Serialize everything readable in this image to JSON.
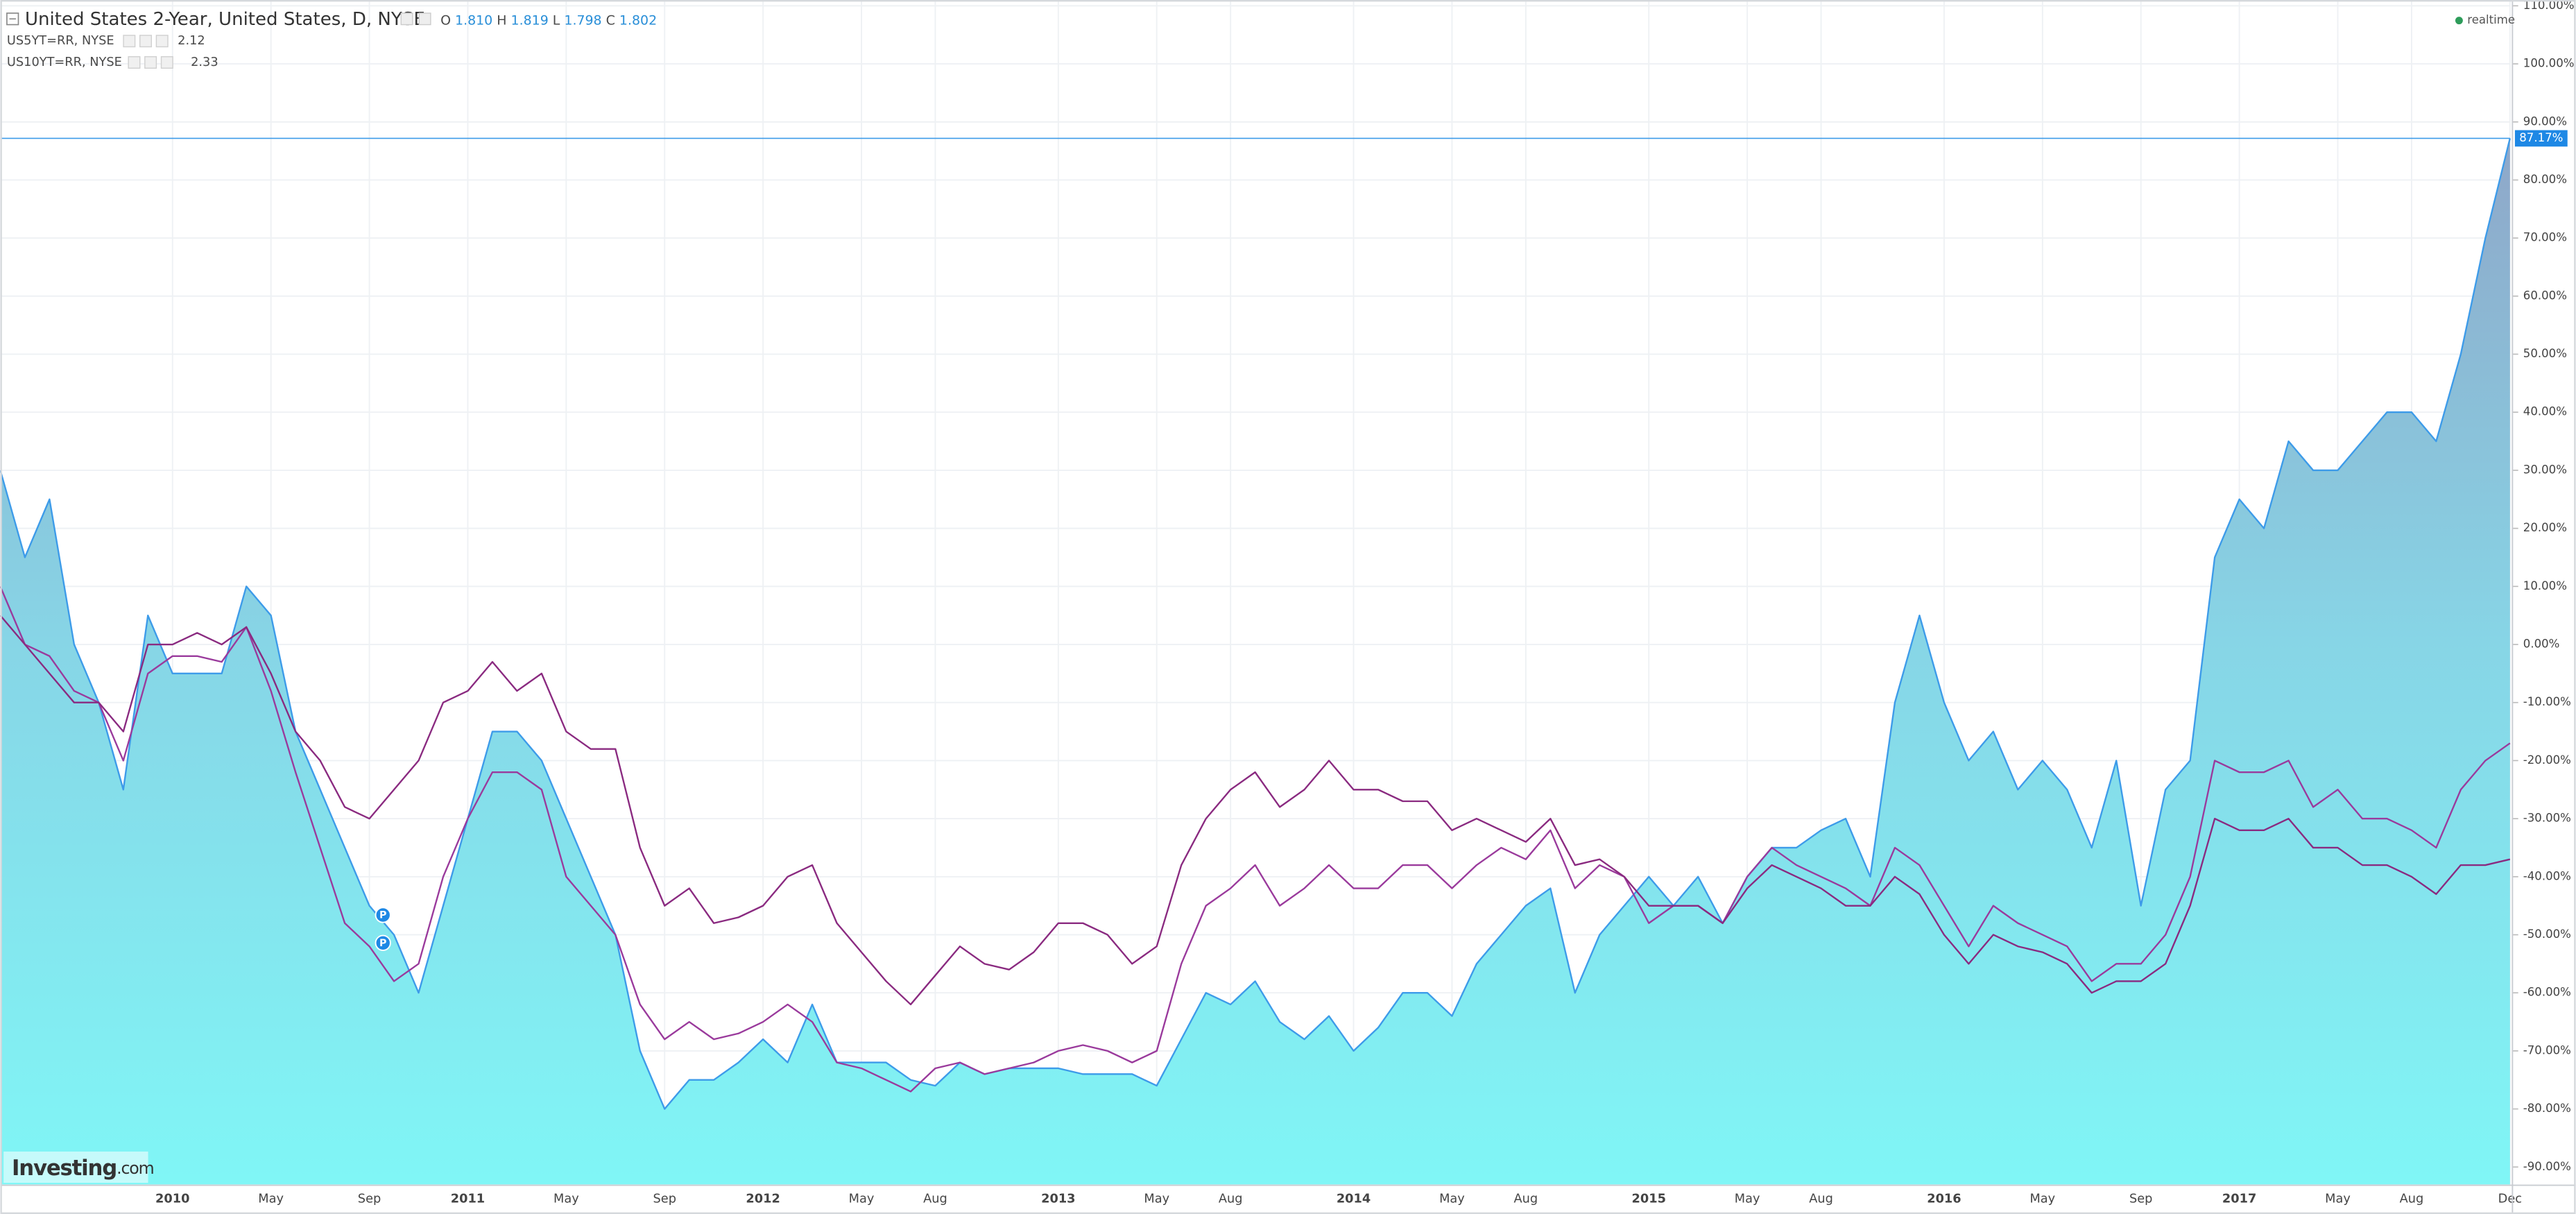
{
  "chart_data": {
    "type": "line",
    "title": "United States 2-Year, United States, D, NYSE",
    "ohlc": {
      "o_label": "O",
      "o": "1.810",
      "h_label": "H",
      "h": "1.819",
      "l_label": "L",
      "l": "1.798",
      "c_label": "C",
      "c": "1.802"
    },
    "status": "realtime",
    "watermark": {
      "brand": "Investing",
      "suffix": ".com"
    },
    "dividend_markers": [
      "P",
      "P"
    ],
    "x": [
      "2009-06",
      "2009-07",
      "2009-08",
      "2009-09",
      "2009-10",
      "2009-11",
      "2009-12",
      "2010-01",
      "2010-02",
      "2010-03",
      "2010-04",
      "2010-05",
      "2010-06",
      "2010-07",
      "2010-08",
      "2010-09",
      "2010-10",
      "2010-11",
      "2010-12",
      "2011-01",
      "2011-02",
      "2011-03",
      "2011-04",
      "2011-05",
      "2011-06",
      "2011-07",
      "2011-08",
      "2011-09",
      "2011-10",
      "2011-11",
      "2011-12",
      "2012-01",
      "2012-02",
      "2012-03",
      "2012-04",
      "2012-05",
      "2012-06",
      "2012-07",
      "2012-08",
      "2012-09",
      "2012-10",
      "2012-11",
      "2012-12",
      "2013-01",
      "2013-02",
      "2013-03",
      "2013-04",
      "2013-05",
      "2013-06",
      "2013-07",
      "2013-08",
      "2013-09",
      "2013-10",
      "2013-11",
      "2013-12",
      "2014-01",
      "2014-02",
      "2014-03",
      "2014-04",
      "2014-05",
      "2014-06",
      "2014-07",
      "2014-08",
      "2014-09",
      "2014-10",
      "2014-11",
      "2014-12",
      "2015-01",
      "2015-02",
      "2015-03",
      "2015-04",
      "2015-05",
      "2015-06",
      "2015-07",
      "2015-08",
      "2015-09",
      "2015-10",
      "2015-11",
      "2015-12",
      "2016-01",
      "2016-02",
      "2016-03",
      "2016-04",
      "2016-05",
      "2016-06",
      "2016-07",
      "2016-08",
      "2016-09",
      "2016-10",
      "2016-11",
      "2016-12",
      "2017-01",
      "2017-02",
      "2017-03",
      "2017-04",
      "2017-05",
      "2017-06",
      "2017-07",
      "2017-08",
      "2017-09",
      "2017-10",
      "2017-11",
      "2017-12"
    ],
    "series": [
      {
        "name": "United States 2-Year",
        "color": "#3d9be9",
        "area": true,
        "values": [
          30,
          15,
          25,
          0,
          -10,
          -25,
          5,
          -5,
          -5,
          -5,
          10,
          5,
          -15,
          -25,
          -35,
          -45,
          -50,
          -60,
          -45,
          -30,
          -15,
          -15,
          -20,
          -30,
          -40,
          -50,
          -70,
          -80,
          -75,
          -75,
          -72,
          -68,
          -72,
          -62,
          -72,
          -72,
          -72,
          -75,
          -76,
          -72,
          -74,
          -73,
          -73,
          -73,
          -74,
          -74,
          -74,
          -76,
          -68,
          -60,
          -62,
          -58,
          -65,
          -68,
          -64,
          -70,
          -66,
          -60,
          -60,
          -64,
          -55,
          -50,
          -45,
          -42,
          -60,
          -50,
          -45,
          -40,
          -45,
          -40,
          -48,
          -40,
          -35,
          -35,
          -32,
          -30,
          -40,
          -10,
          5,
          -10,
          -20,
          -15,
          -25,
          -20,
          -25,
          -35,
          -20,
          -45,
          -25,
          -20,
          15,
          25,
          20,
          35,
          30,
          30,
          35,
          40,
          40,
          35,
          50,
          70,
          87.17
        ],
        "value_labels": [
          null,
          null,
          null,
          null,
          null,
          null,
          null,
          null,
          null,
          null,
          null,
          null,
          null,
          null,
          null,
          null,
          null,
          null,
          null,
          null,
          null,
          null,
          null,
          null,
          null,
          null,
          null,
          null,
          null,
          null,
          null,
          null,
          null,
          null,
          null,
          null,
          null,
          null,
          null,
          null,
          null,
          null,
          null,
          null,
          null,
          null,
          null,
          null,
          null,
          null,
          null,
          null,
          null,
          null,
          null,
          null,
          null,
          null,
          null,
          null,
          null,
          null,
          null,
          null,
          null,
          null,
          null,
          null,
          null,
          null,
          null,
          null,
          null,
          null,
          null,
          null,
          null,
          null,
          null,
          null,
          null,
          null,
          null,
          null,
          null,
          null,
          null,
          null,
          null,
          null,
          null,
          null,
          null,
          null,
          null,
          null,
          null,
          null,
          null,
          null,
          null,
          null,
          "87.17%"
        ]
      },
      {
        "name": "US5YT=RR, NYSE",
        "last": "2.12",
        "color": "#9a3a9c",
        "values": [
          10,
          0,
          -2,
          -8,
          -10,
          -20,
          -5,
          -2,
          -2,
          -3,
          3,
          -8,
          -22,
          -35,
          -48,
          -52,
          -58,
          -55,
          -40,
          -30,
          -22,
          -22,
          -25,
          -40,
          -45,
          -50,
          -62,
          -68,
          -65,
          -68,
          -67,
          -65,
          -62,
          -65,
          -72,
          -73,
          -75,
          -77,
          -73,
          -72,
          -74,
          -73,
          -72,
          -70,
          -69,
          -70,
          -72,
          -70,
          -55,
          -45,
          -42,
          -38,
          -45,
          -42,
          -38,
          -42,
          -42,
          -38,
          -38,
          -42,
          -38,
          -35,
          -37,
          -32,
          -42,
          -38,
          -40,
          -48,
          -45,
          -45,
          -48,
          -40,
          -35,
          -38,
          -40,
          -42,
          -45,
          -35,
          -38,
          -45,
          -52,
          -45,
          -48,
          -50,
          -52,
          -58,
          -55,
          -55,
          -50,
          -40,
          -20,
          -22,
          -22,
          -20,
          -28,
          -25,
          -30,
          -30,
          -32,
          -35,
          -25,
          -20,
          -17
        ]
      },
      {
        "name": "US10YT=RR, NYSE",
        "last": "2.33",
        "color": "#8a2a80",
        "values": [
          5,
          0,
          -5,
          -10,
          -10,
          -15,
          0,
          0,
          2,
          0,
          3,
          -5,
          -15,
          -20,
          -28,
          -30,
          -25,
          -20,
          -10,
          -8,
          -3,
          -8,
          -5,
          -15,
          -18,
          -18,
          -35,
          -45,
          -42,
          -48,
          -47,
          -45,
          -40,
          -38,
          -48,
          -53,
          -58,
          -62,
          -57,
          -52,
          -55,
          -56,
          -53,
          -48,
          -48,
          -50,
          -55,
          -52,
          -38,
          -30,
          -25,
          -22,
          -28,
          -25,
          -20,
          -25,
          -25,
          -27,
          -27,
          -32,
          -30,
          -32,
          -34,
          -30,
          -38,
          -37,
          -40,
          -45,
          -45,
          -45,
          -48,
          -42,
          -38,
          -40,
          -42,
          -45,
          -45,
          -40,
          -43,
          -50,
          -55,
          -50,
          -52,
          -53,
          -55,
          -60,
          -58,
          -58,
          -55,
          -45,
          -30,
          -32,
          -32,
          -30,
          -35,
          -35,
          -38,
          -38,
          -40,
          -43,
          -38,
          -38,
          -37
        ]
      }
    ],
    "xlim": [
      "2009-06",
      "2017-12"
    ],
    "xticks": [
      {
        "value": "2010-01",
        "label": "2010"
      },
      {
        "value": "2010-05",
        "label": "May"
      },
      {
        "value": "2010-09",
        "label": "Sep"
      },
      {
        "value": "2011-01",
        "label": "2011"
      },
      {
        "value": "2011-05",
        "label": "May"
      },
      {
        "value": "2011-09",
        "label": "Sep"
      },
      {
        "value": "2012-01",
        "label": "2012"
      },
      {
        "value": "2012-05",
        "label": "May"
      },
      {
        "value": "2012-08",
        "label": "Aug"
      },
      {
        "value": "2013-01",
        "label": "2013"
      },
      {
        "value": "2013-05",
        "label": "May"
      },
      {
        "value": "2013-08",
        "label": "Aug"
      },
      {
        "value": "2014-01",
        "label": "2014"
      },
      {
        "value": "2014-05",
        "label": "May"
      },
      {
        "value": "2014-08",
        "label": "Aug"
      },
      {
        "value": "2015-01",
        "label": "2015"
      },
      {
        "value": "2015-05",
        "label": "May"
      },
      {
        "value": "2015-08",
        "label": "Aug"
      },
      {
        "value": "2016-01",
        "label": "2016"
      },
      {
        "value": "2016-05",
        "label": "May"
      },
      {
        "value": "2016-09",
        "label": "Sep"
      },
      {
        "value": "2017-01",
        "label": "2017"
      },
      {
        "value": "2017-05",
        "label": "May"
      },
      {
        "value": "2017-08",
        "label": "Aug"
      },
      {
        "value": "2017-12",
        "label": "Dec"
      }
    ],
    "ylim": [
      -93,
      111
    ],
    "yticks": [
      {
        "value": -90,
        "label": "-90.00%"
      },
      {
        "value": -80,
        "label": "-80.00%"
      },
      {
        "value": -70,
        "label": "-70.00%"
      },
      {
        "value": -60,
        "label": "-60.00%"
      },
      {
        "value": -50,
        "label": "-50.00%"
      },
      {
        "value": -40,
        "label": "-40.00%"
      },
      {
        "value": -30,
        "label": "-30.00%"
      },
      {
        "value": -20,
        "label": "-20.00%"
      },
      {
        "value": -10,
        "label": "-10.00%"
      },
      {
        "value": 0,
        "label": "0.00%"
      },
      {
        "value": 10,
        "label": "10.00%"
      },
      {
        "value": 20,
        "label": "20.00%"
      },
      {
        "value": 30,
        "label": "30.00%"
      },
      {
        "value": 40,
        "label": "40.00%"
      },
      {
        "value": 50,
        "label": "50.00%"
      },
      {
        "value": 60,
        "label": "60.00%"
      },
      {
        "value": 70,
        "label": "70.00%"
      },
      {
        "value": 80,
        "label": "80.00%"
      },
      {
        "value": 90,
        "label": "90.00%"
      },
      {
        "value": 100,
        "label": "100.00%"
      },
      {
        "value": 110,
        "label": "110.00%"
      }
    ],
    "grid": true
  }
}
